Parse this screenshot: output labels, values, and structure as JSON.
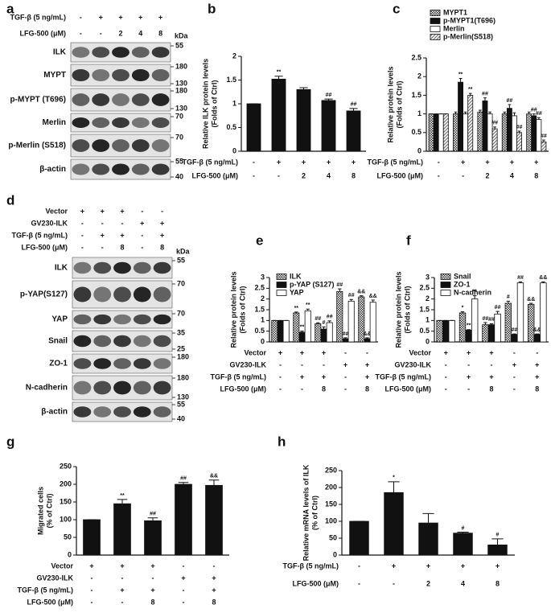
{
  "blots": [
    {
      "panel_label": "a",
      "unit_label": "kDa",
      "conditions": [
        {
          "label": "TGF-β (5 ng/mL)",
          "values": [
            "-",
            "+",
            "+",
            "+",
            "+"
          ]
        },
        {
          "label": "LFG-500 (μM)",
          "values": [
            "-",
            "-",
            "2",
            "4",
            "8"
          ]
        }
      ],
      "bands": [
        {
          "name": "ILK",
          "markers": [
            55
          ]
        },
        {
          "name": "MYPT",
          "markers": [
            180,
            130
          ]
        },
        {
          "name": "p-MYPT (T696)",
          "markers": [
            180,
            130
          ]
        },
        {
          "name": "Merlin",
          "markers": [
            70
          ]
        },
        {
          "name": "p-Merlin (S518)",
          "markers": [
            70
          ]
        },
        {
          "name": "β-actin",
          "markers": [
            55,
            40
          ]
        }
      ]
    },
    {
      "panel_label": "d",
      "unit_label": "kDa",
      "conditions": [
        {
          "label": "Vector",
          "values": [
            "+",
            "+",
            "+",
            "-",
            "-"
          ]
        },
        {
          "label": "GV230-ILK",
          "values": [
            "-",
            "-",
            "-",
            "+",
            "+"
          ]
        },
        {
          "label": "TGF-β (5 ng/mL)",
          "values": [
            "-",
            "+",
            "+",
            "-",
            "+"
          ]
        },
        {
          "label": "LFG-500 (μM)",
          "values": [
            "-",
            "-",
            "8",
            "-",
            "8"
          ]
        }
      ],
      "bands": [
        {
          "name": "ILK",
          "markers": [
            55
          ]
        },
        {
          "name": "p-YAP(S127)",
          "markers": [
            70
          ]
        },
        {
          "name": "YAP",
          "markers": [
            70
          ]
        },
        {
          "name": "Snail",
          "markers": [
            35,
            25
          ]
        },
        {
          "name": "ZO-1",
          "markers": [
            180
          ]
        },
        {
          "name": "N-cadherin",
          "markers": [
            180,
            130
          ]
        },
        {
          "name": "β-actin",
          "markers": [
            55,
            40
          ]
        }
      ]
    }
  ],
  "chart_data": [
    {
      "panel_label": "b",
      "type": "bar",
      "y_label": [
        "Relative ILK protein levels",
        "(Folds of Ctrl)"
      ],
      "ylim": [
        0,
        2
      ],
      "yticks": [
        0,
        0.5,
        1,
        1.5,
        2
      ],
      "conditions": [
        {
          "label": "TGF-β (5 ng/mL)",
          "values": [
            "-",
            "+",
            "+",
            "+",
            "+"
          ]
        },
        {
          "label": "LFG-500 (μM)",
          "values": [
            "-",
            "-",
            "2",
            "4",
            "8"
          ]
        }
      ],
      "series": [
        {
          "color": "#111111",
          "values": [
            1,
            1.52,
            1.3,
            1.07,
            0.85
          ],
          "errors": [
            0,
            0.06,
            0.04,
            0.03,
            0.05
          ],
          "significance": [
            null,
            "**",
            null,
            "##",
            "##"
          ]
        }
      ]
    },
    {
      "panel_label": "c",
      "type": "bar",
      "y_label": [
        "Relative protein levels",
        "(Folds of Ctrl)"
      ],
      "ylim": [
        0,
        2.5
      ],
      "yticks": [
        0,
        0.5,
        1,
        1.5,
        2,
        2.5
      ],
      "conditions": [
        {
          "label": "TGF-β (5 ng/mL)",
          "values": [
            "-",
            "+",
            "+",
            "+",
            "+"
          ]
        },
        {
          "label": "LFG-500 (μM)",
          "values": [
            "-",
            "-",
            "2",
            "4",
            "8"
          ]
        }
      ],
      "series": [
        {
          "name": "MYPT1",
          "color": "#333333",
          "pattern": "checker",
          "values": [
            1,
            1,
            1.05,
            1,
            1
          ],
          "errors": [
            0,
            0.05,
            0.05,
            0.05,
            0.05
          ],
          "significance": [
            null,
            null,
            null,
            null,
            null
          ]
        },
        {
          "name": "p-MYPT1(T696)",
          "color": "#111111",
          "values": [
            1,
            1.85,
            1.35,
            1.15,
            0.95
          ],
          "errors": [
            0,
            0.1,
            0.08,
            0.1,
            0.05
          ],
          "significance": [
            null,
            "**",
            "##",
            "##",
            "##"
          ]
        },
        {
          "name": "Merlin",
          "color": "#ffffff",
          "values": [
            1,
            1,
            1,
            0.95,
            0.85
          ],
          "errors": [
            0,
            0.05,
            0.05,
            0.08,
            0.05
          ],
          "significance": [
            null,
            null,
            null,
            null,
            "##"
          ]
        },
        {
          "name": "p-Merlin(S518)",
          "color": "#777777",
          "pattern": "diagonal",
          "values": [
            1,
            1.5,
            0.6,
            0.5,
            0.25
          ],
          "errors": [
            0,
            0.05,
            0.05,
            0.04,
            0.05
          ],
          "significance": [
            null,
            "**",
            "##",
            "##",
            "##"
          ]
        }
      ]
    },
    {
      "panel_label": "e",
      "type": "bar",
      "y_label": [
        "Relative protein levels",
        "(Folds of Ctrl)"
      ],
      "ylim": [
        0,
        3
      ],
      "yticks": [
        0,
        0.5,
        1,
        1.5,
        2,
        2.5,
        3
      ],
      "conditions": [
        {
          "label": "Vector",
          "values": [
            "+",
            "+",
            "+",
            "-",
            "-"
          ]
        },
        {
          "label": "GV230-ILK",
          "values": [
            "-",
            "-",
            "-",
            "+",
            "+"
          ]
        },
        {
          "label": "TGF-β (5 ng/mL)",
          "values": [
            "-",
            "+",
            "+",
            "-",
            "+"
          ]
        },
        {
          "label": "LFG-500 (μM)",
          "values": [
            "-",
            "-",
            "8",
            "-",
            "8"
          ]
        }
      ],
      "series": [
        {
          "name": "ILK",
          "color": "#333333",
          "pattern": "checker",
          "values": [
            1,
            1.35,
            0.85,
            2.35,
            2.1
          ],
          "errors": [
            0,
            0.04,
            0.04,
            0.12,
            0.05
          ],
          "significance": [
            null,
            "**",
            "##",
            "##",
            "&&"
          ]
        },
        {
          "name": "p-YAP (S127)",
          "color": "#111111",
          "values": [
            1,
            0.45,
            0.6,
            0.15,
            0.15
          ],
          "errors": [
            0,
            0.05,
            0.1,
            0.04,
            0.04
          ],
          "significance": [
            null,
            "**",
            "#",
            "##",
            "&&"
          ]
        },
        {
          "name": "YAP",
          "color": "#ffffff",
          "values": [
            1,
            1.45,
            0.9,
            1.9,
            1.85
          ],
          "errors": [
            0,
            0.08,
            0.08,
            0.08,
            0.1
          ],
          "significance": [
            null,
            "**",
            "##",
            "##",
            "&&"
          ]
        }
      ]
    },
    {
      "panel_label": "f",
      "type": "bar",
      "y_label": [
        "Relative protein levels",
        "(Folds of Ctrl)"
      ],
      "ylim": [
        0,
        3
      ],
      "yticks": [
        0,
        0.5,
        1,
        1.5,
        2,
        2.5,
        3
      ],
      "conditions": [
        {
          "label": "Vector",
          "values": [
            "+",
            "+",
            "+",
            "-",
            "-"
          ]
        },
        {
          "label": "GV230-ILK",
          "values": [
            "-",
            "-",
            "-",
            "+",
            "+"
          ]
        },
        {
          "label": "TGF-β (5 ng/mL)",
          "values": [
            "-",
            "+",
            "+",
            "-",
            "+"
          ]
        },
        {
          "label": "LFG-500 (μM)",
          "values": [
            "-",
            "-",
            "8",
            "-",
            "8"
          ]
        }
      ],
      "series": [
        {
          "name": "Snail",
          "color": "#333333",
          "pattern": "checker",
          "values": [
            1,
            1.35,
            0.8,
            1.8,
            1.75
          ],
          "errors": [
            0,
            0.05,
            0.1,
            0.1,
            0.05
          ],
          "significance": [
            null,
            "*",
            "##",
            "#",
            "&&"
          ]
        },
        {
          "name": "ZO-1",
          "color": "#111111",
          "values": [
            1,
            0.55,
            0.8,
            0.35,
            0.35
          ],
          "errors": [
            0,
            0.02,
            0.05,
            0.02,
            0.02
          ],
          "significance": [
            null,
            "**",
            "##",
            "##",
            "&&"
          ]
        },
        {
          "name": "N-cadherin",
          "color": "#ffffff",
          "values": [
            1,
            2,
            1.3,
            2.75,
            2.75
          ],
          "errors": [
            0,
            0.15,
            0.12,
            0.05,
            0.05
          ],
          "significance": [
            null,
            "**",
            "##",
            "##",
            "&&"
          ]
        }
      ]
    },
    {
      "panel_label": "g",
      "type": "bar",
      "y_label": [
        "Migrated cells",
        "(% of Ctrl)"
      ],
      "ylim": [
        0,
        250
      ],
      "yticks": [
        0,
        50,
        100,
        150,
        200,
        250
      ],
      "conditions": [
        {
          "label": "Vector",
          "values": [
            "+",
            "+",
            "+",
            "-",
            "-"
          ]
        },
        {
          "label": "GV230-ILK",
          "values": [
            "-",
            "-",
            "-",
            "+",
            "+"
          ]
        },
        {
          "label": "TGF-β (5 ng/mL)",
          "values": [
            "-",
            "+",
            "+",
            "-",
            "+"
          ]
        },
        {
          "label": "LFG-500 (μM)",
          "values": [
            "-",
            "-",
            "8",
            "-",
            "8"
          ]
        }
      ],
      "series": [
        {
          "color": "#111111",
          "values": [
            100,
            145,
            97,
            200,
            197
          ],
          "errors": [
            0,
            12,
            8,
            5,
            15
          ],
          "significance": [
            null,
            "**",
            "##",
            "##",
            "&&"
          ]
        }
      ]
    },
    {
      "panel_label": "h",
      "type": "bar",
      "y_label": [
        "Relative mRNA levels of ILK",
        "(% of Ctrl)"
      ],
      "ylim": [
        0,
        250
      ],
      "yticks": [
        0,
        50,
        100,
        150,
        200,
        250
      ],
      "conditions": [
        {
          "label": "TGF-β (5 ng/mL)",
          "values": [
            "-",
            "+",
            "+",
            "+",
            "+"
          ]
        },
        {
          "label": "LFG-500 (μM)",
          "values": [
            "-",
            "-",
            "2",
            "4",
            "8"
          ]
        }
      ],
      "series": [
        {
          "color": "#111111",
          "values": [
            100,
            185,
            95,
            65,
            30
          ],
          "errors": [
            0,
            32,
            28,
            3,
            18
          ],
          "significance": [
            null,
            "*",
            null,
            "#",
            "#"
          ]
        }
      ]
    }
  ]
}
